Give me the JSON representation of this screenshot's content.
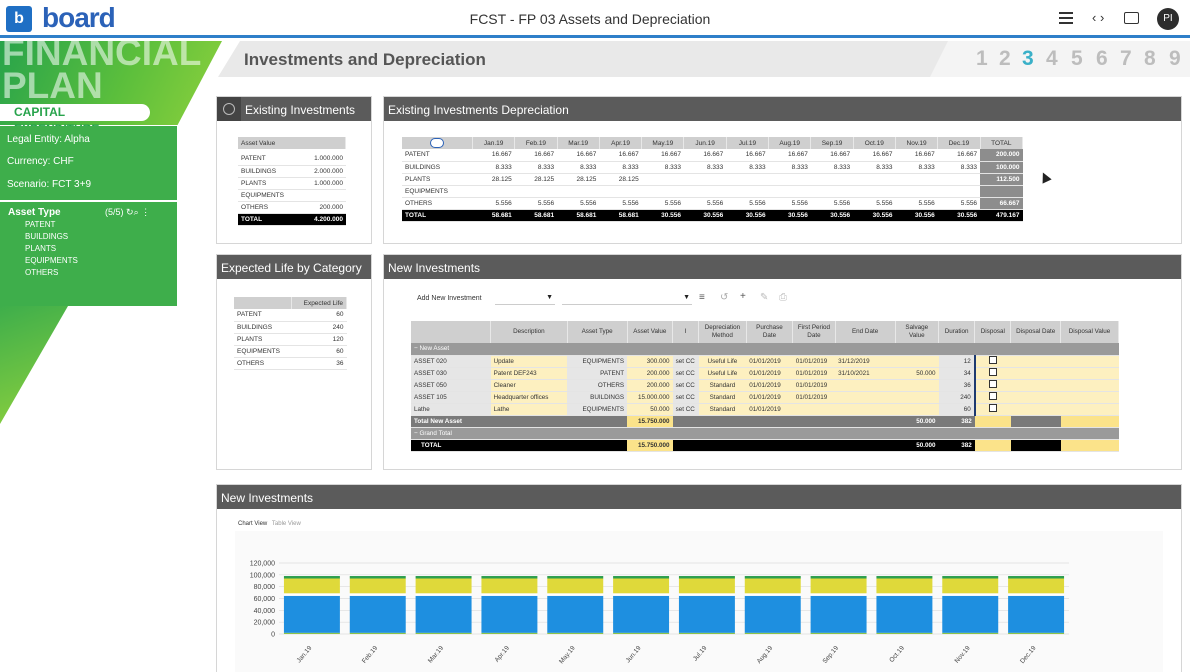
{
  "app": {
    "logo_letter": "b",
    "logo_word": "board",
    "title": "FCST - FP 03 Assets and Depreciation",
    "avatar": "PI",
    "nav_arrows": "‹ ›"
  },
  "sidebar": {
    "banner_line1": "FINANCIAL",
    "banner_line2": "PLAN",
    "section": "CAPITAL EXPENDITURE",
    "filters": [
      "Legal Entity: Alpha",
      "Currency:  CHF",
      "Scenario: FCT 3+9"
    ],
    "asset_type": {
      "label": "Asset Type",
      "count": "(5/5)",
      "items": [
        "PATENT",
        "BUILDINGS",
        "PLANTS",
        "EQUIPMENTS",
        "OTHERS"
      ]
    }
  },
  "header": {
    "title": "Investments and Depreciation",
    "steps": [
      "1",
      "2",
      "3",
      "4",
      "5",
      "6",
      "7",
      "8",
      "9"
    ],
    "active_step": "3"
  },
  "existing": {
    "title": "Existing Investments",
    "col": "Asset Value",
    "rows": [
      {
        "name": "PATENT",
        "value": "1.000.000"
      },
      {
        "name": "BUILDINGS",
        "value": "2.000.000"
      },
      {
        "name": "PLANTS",
        "value": "1.000.000"
      },
      {
        "name": "EQUIPMENTS",
        "value": ""
      },
      {
        "name": "OTHERS",
        "value": "200.000"
      }
    ],
    "total": {
      "name": "TOTAL",
      "value": "4.200.000"
    }
  },
  "depreciation": {
    "title": "Existing Investments Depreciation",
    "months": [
      "Jan.19",
      "Feb.19",
      "Mar.19",
      "Apr.19",
      "May.19",
      "Jun.19",
      "Jul.19",
      "Aug.19",
      "Sep.19",
      "Oct.19",
      "Nov.19",
      "Dec.19",
      "TOTAL"
    ],
    "rows": [
      {
        "name": "PATENT",
        "values": [
          "16.667",
          "16.667",
          "16.667",
          "16.667",
          "16.667",
          "16.667",
          "16.667",
          "16.667",
          "16.667",
          "16.667",
          "16.667",
          "16.667",
          "200.000"
        ]
      },
      {
        "name": "BUILDINGS",
        "values": [
          "8.333",
          "8.333",
          "8.333",
          "8.333",
          "8.333",
          "8.333",
          "8.333",
          "8.333",
          "8.333",
          "8.333",
          "8.333",
          "8.333",
          "100.000"
        ]
      },
      {
        "name": "PLANTS",
        "values": [
          "28.125",
          "28.125",
          "28.125",
          "28.125",
          "",
          "",
          "",
          "",
          "",
          "",
          "",
          "",
          "112.500"
        ]
      },
      {
        "name": "EQUIPMENTS",
        "values": [
          "",
          "",
          "",
          "",
          "",
          "",
          "",
          "",
          "",
          "",
          "",
          "",
          ""
        ]
      },
      {
        "name": "OTHERS",
        "values": [
          "5.556",
          "5.556",
          "5.556",
          "5.556",
          "5.556",
          "5.556",
          "5.556",
          "5.556",
          "5.556",
          "5.556",
          "5.556",
          "5.556",
          "66.667"
        ]
      }
    ],
    "total": {
      "name": "TOTAL",
      "values": [
        "58.681",
        "58.681",
        "58.681",
        "58.681",
        "30.556",
        "30.556",
        "30.556",
        "30.556",
        "30.556",
        "30.556",
        "30.556",
        "30.556",
        "479.167"
      ]
    }
  },
  "expected_life": {
    "title": "Expected Life by Category",
    "col": "Expected Life",
    "rows": [
      {
        "name": "PATENT",
        "value": "60"
      },
      {
        "name": "BUILDINGS",
        "value": "240"
      },
      {
        "name": "PLANTS",
        "value": "120"
      },
      {
        "name": "EQUIPMENTS",
        "value": "60"
      },
      {
        "name": "OTHERS",
        "value": "36"
      }
    ]
  },
  "new_investments": {
    "title": "New Investments",
    "add_label": "Add New Investment",
    "columns": [
      "Description",
      "Asset Type",
      "Asset Value",
      "I",
      "Depreciation Method",
      "Purchase Date",
      "First Period Date",
      "End Date",
      "Salvage Value",
      "Duration",
      "Disposal",
      "Disposal Date",
      "Disposal Value"
    ],
    "group_label": "New Asset",
    "rows": [
      {
        "asset": "ASSET 020",
        "desc": "Update",
        "type": "EQUIPMENTS",
        "value": "300.000",
        "i": "set CC",
        "method": "Useful Life",
        "purchase": "01/01/2019",
        "first": "01/01/2019",
        "end": "31/12/2019",
        "salvage": "",
        "duration": "12"
      },
      {
        "asset": "ASSET 030",
        "desc": "Patent DEF243",
        "type": "PATENT",
        "value": "200.000",
        "i": "set CC",
        "method": "Useful Life",
        "purchase": "01/01/2019",
        "first": "01/01/2019",
        "end": "31/10/2021",
        "salvage": "50.000",
        "duration": "34"
      },
      {
        "asset": "ASSET 050",
        "desc": "Cleaner",
        "type": "OTHERS",
        "value": "200.000",
        "i": "set CC",
        "method": "Standard",
        "purchase": "01/01/2019",
        "first": "01/01/2019",
        "end": "",
        "salvage": "",
        "duration": "36"
      },
      {
        "asset": "ASSET 105",
        "desc": "Headquarter offices",
        "type": "BUILDINGS",
        "value": "15.000.000",
        "i": "set CC",
        "method": "Standard",
        "purchase": "01/01/2019",
        "first": "01/01/2019",
        "end": "",
        "salvage": "",
        "duration": "240"
      },
      {
        "asset": "Lathe",
        "desc": "Lathe",
        "type": "EQUIPMENTS",
        "value": "50.000",
        "i": "set CC",
        "method": "Standard",
        "purchase": "01/01/2019",
        "first": "",
        "end": "",
        "salvage": "",
        "duration": "60"
      }
    ],
    "subtotal": {
      "label": "Total New Asset",
      "value": "15.750.000",
      "salvage": "50.000",
      "duration": "382"
    },
    "grand_label": "Grand Total",
    "total": {
      "label": "TOTAL",
      "value": "15.750.000",
      "salvage": "50.000",
      "duration": "382"
    }
  },
  "chart_panel": {
    "title": "New Investments",
    "tab_chart": "Chart View",
    "tab_table": "Table View"
  },
  "chart_data": {
    "type": "bar",
    "stacked": true,
    "categories": [
      "Jan.19",
      "Feb.19",
      "Mar.19",
      "Apr.19",
      "May.19",
      "Jun.19",
      "Jul.19",
      "Aug.19",
      "Sep.19",
      "Oct.19",
      "Nov.19",
      "Dec.19"
    ],
    "series": [
      {
        "color": "#8bc34a",
        "values": [
          2000,
          2000,
          2000,
          2000,
          2000,
          2000,
          2000,
          2000,
          2000,
          2000,
          2000,
          2000
        ]
      },
      {
        "color": "#1e8fe0",
        "values": [
          62500,
          62500,
          62500,
          62500,
          62500,
          62500,
          62500,
          62500,
          62500,
          62500,
          62500,
          62500
        ]
      },
      {
        "color": "#ffffff",
        "values": [
          4300,
          4300,
          4300,
          4300,
          4300,
          4300,
          4300,
          4300,
          4300,
          4300,
          4300,
          4300
        ]
      },
      {
        "color": "#dfd93a",
        "values": [
          25000,
          25000,
          25000,
          25000,
          25000,
          25000,
          25000,
          25000,
          25000,
          25000,
          25000,
          25000
        ]
      },
      {
        "color": "#2e9e4f",
        "values": [
          4200,
          4200,
          4200,
          4200,
          4200,
          4200,
          4200,
          4200,
          4200,
          4200,
          4200,
          4200
        ]
      }
    ],
    "yticks": [
      "0",
      "20,000",
      "40,000",
      "60,000",
      "80,000",
      "100,000",
      "120,000"
    ],
    "ylim": [
      0,
      120000
    ],
    "grid": true,
    "xlabel": "",
    "ylabel": ""
  }
}
